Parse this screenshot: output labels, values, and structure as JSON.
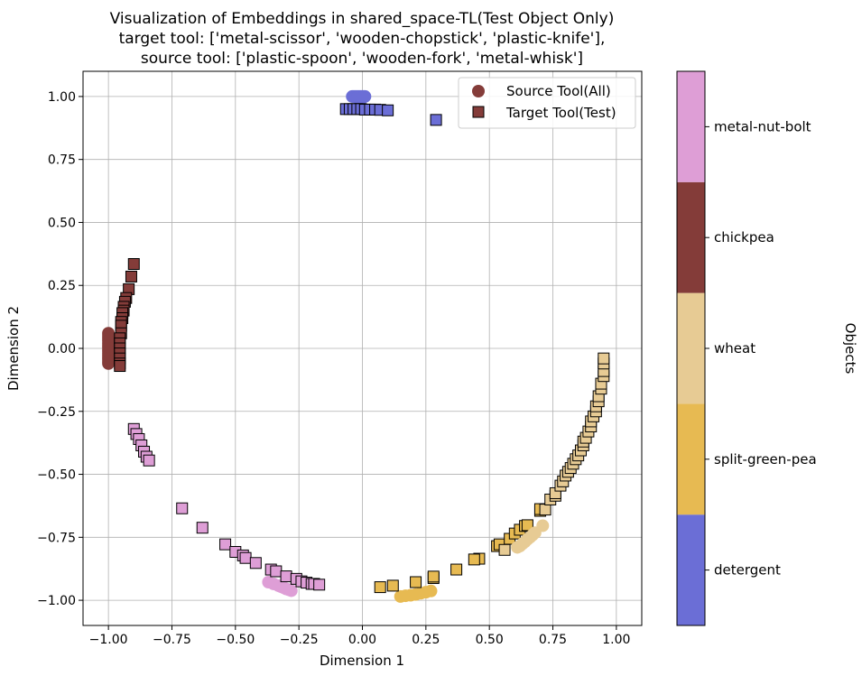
{
  "chart_data": {
    "type": "scatter",
    "title_lines": [
      "Visualization of Embeddings in shared_space-TL(Test Object Only)",
      "target tool: ['metal-scissor', 'wooden-chopstick', 'plastic-knife'],",
      "source tool: ['plastic-spoon', 'wooden-fork', 'metal-whisk']"
    ],
    "xlabel": "Dimension 1",
    "ylabel": "Dimension 2",
    "xlim": [
      -1.1,
      1.1
    ],
    "ylim": [
      -1.1,
      1.1
    ],
    "grid": true,
    "xticks": [
      {
        "v": -1.0,
        "label": "−1.00"
      },
      {
        "v": -0.75,
        "label": "−0.75"
      },
      {
        "v": -0.5,
        "label": "−0.50"
      },
      {
        "v": -0.25,
        "label": "−0.25"
      },
      {
        "v": 0.0,
        "label": "0.00"
      },
      {
        "v": 0.25,
        "label": "0.25"
      },
      {
        "v": 0.5,
        "label": "0.50"
      },
      {
        "v": 0.75,
        "label": "0.75"
      },
      {
        "v": 1.0,
        "label": "1.00"
      }
    ],
    "yticks": [
      {
        "v": -1.0,
        "label": "−1.00"
      },
      {
        "v": -0.75,
        "label": "−0.75"
      },
      {
        "v": -0.5,
        "label": "−0.50"
      },
      {
        "v": -0.25,
        "label": "−0.25"
      },
      {
        "v": 0.0,
        "label": "0.00"
      },
      {
        "v": 0.25,
        "label": "0.25"
      },
      {
        "v": 0.5,
        "label": "0.50"
      },
      {
        "v": 0.75,
        "label": "0.75"
      },
      {
        "v": 1.0,
        "label": "1.00"
      }
    ],
    "legend": {
      "placement": "upper-right",
      "entries": [
        {
          "label": "Source Tool(All)",
          "marker": "circle",
          "color": "#843c39"
        },
        {
          "label": "Target Tool(Test)",
          "marker": "square",
          "color": "#843c39"
        }
      ]
    },
    "colorbar": {
      "label": "Objects",
      "categories": [
        {
          "name": "detergent",
          "color": "#6b6ed6"
        },
        {
          "name": "split-green-pea",
          "color": "#e7ba52"
        },
        {
          "name": "wheat",
          "color": "#e7cb94"
        },
        {
          "name": "chickpea",
          "color": "#843c39"
        },
        {
          "name": "metal-nut-bolt",
          "color": "#de9ed6"
        }
      ]
    },
    "series": [
      {
        "object": "detergent",
        "marker": "circle",
        "points": [
          [
            -0.04,
            1.0
          ],
          [
            -0.035,
            1.0
          ],
          [
            -0.03,
            1.0
          ],
          [
            -0.025,
            1.0
          ],
          [
            -0.02,
            1.0
          ],
          [
            -0.015,
            1.0
          ],
          [
            -0.01,
            1.0
          ],
          [
            -0.005,
            1.0
          ],
          [
            0.0,
            1.0
          ],
          [
            0.005,
            1.0
          ],
          [
            0.01,
            1.0
          ],
          [
            -0.02,
            0.995
          ],
          [
            0.0,
            0.995
          ]
        ]
      },
      {
        "object": "detergent",
        "marker": "square",
        "points": [
          [
            -0.065,
            0.95
          ],
          [
            -0.05,
            0.95
          ],
          [
            -0.035,
            0.95
          ],
          [
            -0.02,
            0.95
          ],
          [
            -0.005,
            0.95
          ],
          [
            0.01,
            0.948
          ],
          [
            0.03,
            0.948
          ],
          [
            0.05,
            0.948
          ],
          [
            0.07,
            0.947
          ],
          [
            0.1,
            0.945
          ],
          [
            0.29,
            0.907
          ]
        ]
      },
      {
        "object": "split-green-pea",
        "marker": "circle",
        "points": [
          [
            0.15,
            -0.985
          ],
          [
            0.17,
            -0.982
          ],
          [
            0.19,
            -0.98
          ],
          [
            0.21,
            -0.977
          ],
          [
            0.23,
            -0.972
          ],
          [
            0.25,
            -0.968
          ],
          [
            0.27,
            -0.963
          ]
        ]
      },
      {
        "object": "split-green-pea",
        "marker": "square",
        "points": [
          [
            0.07,
            -0.948
          ],
          [
            0.12,
            -0.942
          ],
          [
            0.21,
            -0.928
          ],
          [
            0.28,
            -0.912
          ],
          [
            0.28,
            -0.906
          ],
          [
            0.37,
            -0.878
          ],
          [
            0.46,
            -0.835
          ],
          [
            0.44,
            -0.838
          ],
          [
            0.53,
            -0.785
          ],
          [
            0.54,
            -0.778
          ],
          [
            0.58,
            -0.756
          ],
          [
            0.6,
            -0.735
          ],
          [
            0.62,
            -0.72
          ],
          [
            0.64,
            -0.705
          ],
          [
            0.65,
            -0.702
          ],
          [
            0.7,
            -0.645
          ],
          [
            0.7,
            -0.638
          ]
        ]
      },
      {
        "object": "wheat",
        "marker": "circle",
        "points": [
          [
            0.61,
            -0.79
          ],
          [
            0.62,
            -0.785
          ],
          [
            0.63,
            -0.776
          ],
          [
            0.64,
            -0.768
          ],
          [
            0.65,
            -0.758
          ],
          [
            0.66,
            -0.75
          ],
          [
            0.67,
            -0.741
          ],
          [
            0.68,
            -0.732
          ],
          [
            0.71,
            -0.704
          ]
        ]
      },
      {
        "object": "wheat",
        "marker": "square",
        "points": [
          [
            0.56,
            -0.8
          ],
          [
            0.72,
            -0.64
          ],
          [
            0.74,
            -0.6
          ],
          [
            0.76,
            -0.585
          ],
          [
            0.76,
            -0.575
          ],
          [
            0.78,
            -0.545
          ],
          [
            0.79,
            -0.528
          ],
          [
            0.8,
            -0.505
          ],
          [
            0.81,
            -0.49
          ],
          [
            0.82,
            -0.475
          ],
          [
            0.83,
            -0.458
          ],
          [
            0.84,
            -0.44
          ],
          [
            0.85,
            -0.425
          ],
          [
            0.86,
            -0.405
          ],
          [
            0.87,
            -0.385
          ],
          [
            0.87,
            -0.37
          ],
          [
            0.88,
            -0.355
          ],
          [
            0.89,
            -0.33
          ],
          [
            0.9,
            -0.31
          ],
          [
            0.9,
            -0.29
          ],
          [
            0.91,
            -0.27
          ],
          [
            0.92,
            -0.25
          ],
          [
            0.92,
            -0.23
          ],
          [
            0.93,
            -0.21
          ],
          [
            0.93,
            -0.19
          ],
          [
            0.94,
            -0.16
          ],
          [
            0.94,
            -0.14
          ],
          [
            0.95,
            -0.11
          ],
          [
            0.95,
            -0.09
          ],
          [
            0.95,
            -0.06
          ],
          [
            0.95,
            -0.04
          ]
        ]
      },
      {
        "object": "chickpea",
        "marker": "circle",
        "points": [
          [
            -1.0,
            0.06
          ],
          [
            -1.0,
            0.05
          ],
          [
            -1.0,
            0.04
          ],
          [
            -1.0,
            0.03
          ],
          [
            -1.0,
            0.02
          ],
          [
            -1.0,
            0.01
          ],
          [
            -1.0,
            0.0
          ],
          [
            -1.0,
            -0.01
          ],
          [
            -1.0,
            -0.02
          ],
          [
            -1.0,
            -0.03
          ],
          [
            -1.0,
            -0.04
          ],
          [
            -1.0,
            -0.05
          ],
          [
            -1.0,
            -0.06
          ]
        ]
      },
      {
        "object": "chickpea",
        "marker": "square",
        "points": [
          [
            -0.9,
            0.335
          ],
          [
            -0.91,
            0.285
          ],
          [
            -0.92,
            0.235
          ],
          [
            -0.93,
            0.2
          ],
          [
            -0.935,
            0.185
          ],
          [
            -0.94,
            0.165
          ],
          [
            -0.94,
            0.15
          ],
          [
            -0.945,
            0.14
          ],
          [
            -0.945,
            0.12
          ],
          [
            -0.95,
            0.105
          ],
          [
            -0.95,
            0.09
          ],
          [
            -0.95,
            0.06
          ],
          [
            -0.955,
            0.04
          ],
          [
            -0.955,
            0.02
          ],
          [
            -0.955,
            0.0
          ],
          [
            -0.955,
            -0.02
          ],
          [
            -0.955,
            -0.04
          ],
          [
            -0.955,
            -0.06
          ],
          [
            -0.955,
            -0.07
          ]
        ]
      },
      {
        "object": "metal-nut-bolt",
        "marker": "circle",
        "points": [
          [
            -0.37,
            -0.928
          ],
          [
            -0.35,
            -0.935
          ],
          [
            -0.33,
            -0.942
          ],
          [
            -0.32,
            -0.946
          ],
          [
            -0.31,
            -0.95
          ],
          [
            -0.3,
            -0.955
          ],
          [
            -0.29,
            -0.958
          ],
          [
            -0.28,
            -0.962
          ]
        ]
      },
      {
        "object": "metal-nut-bolt",
        "marker": "square",
        "points": [
          [
            -0.9,
            -0.32
          ],
          [
            -0.89,
            -0.34
          ],
          [
            -0.88,
            -0.36
          ],
          [
            -0.87,
            -0.385
          ],
          [
            -0.86,
            -0.41
          ],
          [
            -0.85,
            -0.43
          ],
          [
            -0.84,
            -0.445
          ],
          [
            -0.71,
            -0.635
          ],
          [
            -0.63,
            -0.712
          ],
          [
            -0.54,
            -0.778
          ],
          [
            -0.5,
            -0.808
          ],
          [
            -0.47,
            -0.822
          ],
          [
            -0.46,
            -0.832
          ],
          [
            -0.42,
            -0.852
          ],
          [
            -0.36,
            -0.878
          ],
          [
            -0.34,
            -0.885
          ],
          [
            -0.3,
            -0.905
          ],
          [
            -0.26,
            -0.915
          ],
          [
            -0.24,
            -0.925
          ],
          [
            -0.22,
            -0.93
          ],
          [
            -0.2,
            -0.935
          ],
          [
            -0.19,
            -0.935
          ],
          [
            -0.17,
            -0.938
          ]
        ]
      }
    ]
  }
}
